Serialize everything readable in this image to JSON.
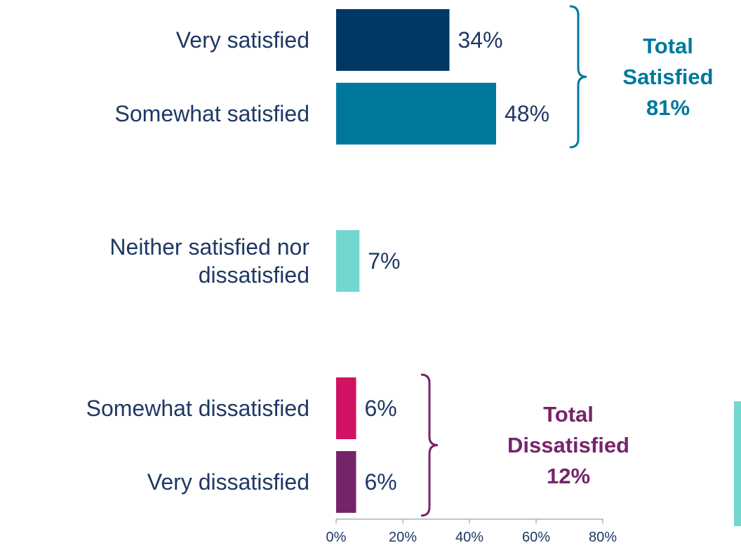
{
  "chart_data": {
    "type": "bar",
    "orientation": "horizontal",
    "categories": [
      [
        "Very satisfied"
      ],
      [
        "Somewhat satisfied"
      ],
      [
        "Neither satisfied nor",
        "dissatisfied"
      ],
      [
        "Somewhat dissatisfied"
      ],
      [
        "Very dissatisfied"
      ]
    ],
    "values": [
      34,
      48,
      7,
      6,
      6
    ],
    "value_labels": [
      "34%",
      "48%",
      "7%",
      "6%",
      "6%"
    ],
    "bar_colors": [
      "#003865",
      "#00789e",
      "#72d7cf",
      "#d01262",
      "#76246a"
    ],
    "xlim": [
      0,
      80
    ],
    "x_ticks": [
      0,
      20,
      40,
      60,
      80
    ],
    "x_tick_labels": [
      "0%",
      "20%",
      "40%",
      "60%",
      "80%"
    ],
    "grid": false,
    "groups": [
      {
        "lines": [
          "Total",
          "Satisfied",
          "81%"
        ],
        "members": [
          0,
          1
        ],
        "color": "#00789e"
      },
      {
        "lines": [
          "Total",
          "Dissatisfied",
          "12%"
        ],
        "members": [
          3,
          4
        ],
        "color": "#76246a"
      }
    ]
  }
}
